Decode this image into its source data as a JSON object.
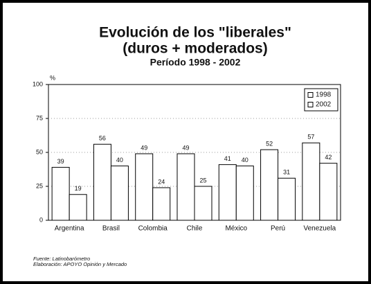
{
  "chart_data": {
    "type": "bar",
    "title": [
      "Evolución de los \"liberales\"",
      "(duros + moderados)"
    ],
    "subtitle": "Período 1998 - 2002",
    "y_label": "%",
    "categories": [
      "Argentina",
      "Brasil",
      "Colombia",
      "Chile",
      "México",
      "Perú",
      "Venezuela"
    ],
    "series": [
      {
        "name": "1998",
        "color": "#ffffff",
        "values": [
          39,
          56,
          49,
          49,
          41,
          52,
          57
        ]
      },
      {
        "name": "2002",
        "color": "#ffffff",
        "values": [
          19,
          40,
          24,
          25,
          40,
          31,
          42
        ]
      }
    ],
    "ylim": [
      0,
      100
    ],
    "yticks": [
      0,
      25,
      50,
      75,
      100
    ],
    "grid": true,
    "legend": "top-right",
    "notes": [
      "Fuente: Latinobarómetro",
      "Elaboración: APOYO Opinión y Mercado"
    ]
  }
}
